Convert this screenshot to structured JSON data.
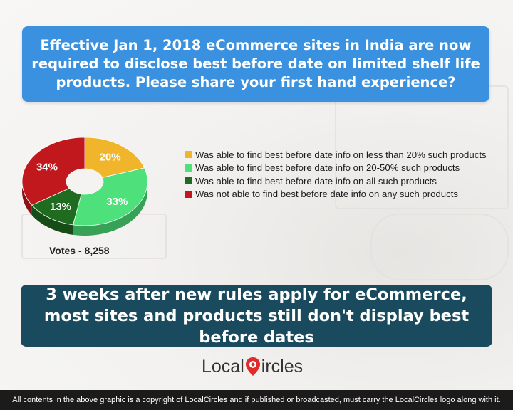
{
  "question": "Effective Jan 1, 2018 eCommerce sites in India are now required to disclose best before date on limited shelf life products. Please share your first hand experience?",
  "chart_data": {
    "type": "pie",
    "title": "",
    "categories": [
      "Was able to find best before date info on less than 20% such products",
      "Was able to find best before date info on 20-50% such products",
      "Was able to find best before date info on all such products",
      "Was not able to find best before date info on any such products"
    ],
    "values": [
      20,
      33,
      13,
      34
    ],
    "value_labels": [
      "20%",
      "33%",
      "13%",
      "34%"
    ],
    "colors": [
      "#f0b52a",
      "#4ee07a",
      "#1f6b1f",
      "#c0181d"
    ],
    "legend_position": "right",
    "donut": true
  },
  "votes": "Votes - 8,258",
  "headline": "3 weeks after new rules apply for eCommerce, most sites and products still don't display best before dates",
  "brand": {
    "part1": "Local",
    "part2": "ircles"
  },
  "footer": "All contents in the above graphic is a copyright of LocalCircles and if published or broadcasted, must carry the LocalCircles logo along with it."
}
